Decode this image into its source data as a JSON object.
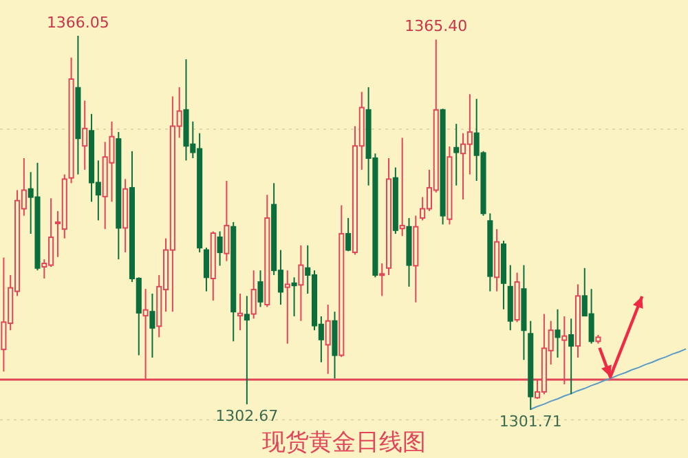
{
  "chart_data": {
    "type": "candlestick",
    "title": "现货黄金日线图",
    "categories": [
      null,
      null,
      null,
      null,
      null,
      null,
      null,
      null,
      null,
      null,
      null,
      null,
      null,
      null,
      null,
      null,
      null,
      null,
      null,
      null,
      null,
      null,
      null,
      null,
      null,
      null,
      null,
      null,
      null,
      null,
      null,
      null,
      null,
      null,
      null,
      null,
      null,
      null,
      null,
      null,
      null,
      null,
      null,
      null,
      null,
      null,
      null,
      null,
      null,
      null,
      null,
      null,
      null,
      null,
      null,
      null,
      null,
      null,
      null,
      null,
      null,
      null,
      null,
      null,
      null,
      null,
      null,
      null,
      null,
      null,
      null,
      null,
      null,
      null,
      null,
      null,
      null,
      null,
      null,
      null,
      null,
      null,
      null,
      null,
      null,
      null,
      null,
      null,
      null,
      null,
      null,
      null,
      null,
      null,
      null,
      null,
      null,
      null,
      null,
      null,
      null,
      null
    ],
    "ohlc": [
      [
        1312.1,
        1327.9,
        1308.3,
        1316.8
      ],
      [
        1316.6,
        1324.9,
        1315.4,
        1322.7
      ],
      [
        1322.1,
        1339.5,
        1321.3,
        1337.7
      ],
      [
        1336.3,
        1345.0,
        1335.1,
        1339.5
      ],
      [
        1339.7,
        1342.6,
        1332.0,
        1338.3
      ],
      [
        1338.3,
        1344.2,
        1325.7,
        1326.1
      ],
      [
        1326.3,
        1327.6,
        1324.3,
        1326.9
      ],
      [
        1326.6,
        1338.1,
        1326.3,
        1331.4
      ],
      [
        1333.8,
        1335.9,
        1328.0,
        1334.0
      ],
      [
        1332.8,
        1342.2,
        1331.2,
        1341.4
      ],
      [
        1341.6,
        1362.3,
        1340.7,
        1358.6
      ],
      [
        1357.1,
        1366.05,
        1342.2,
        1348.4
      ],
      [
        1347.1,
        1354.9,
        1343.0,
        1350.1
      ],
      [
        1349.7,
        1352.6,
        1337.5,
        1340.8
      ],
      [
        1340.8,
        1344.6,
        1334.3,
        1338.7
      ],
      [
        1338.4,
        1347.8,
        1332.8,
        1345.2
      ],
      [
        1344.2,
        1351.3,
        1337.5,
        1348.7
      ],
      [
        1348.3,
        1349.5,
        1327.6,
        1333.0
      ],
      [
        1333.0,
        1341.4,
        1328.8,
        1339.7
      ],
      [
        1339.9,
        1346.2,
        1323.7,
        1324.3
      ],
      [
        1324.3,
        1324.5,
        1311.1,
        1318.4
      ],
      [
        1317.9,
        1322.5,
        1306.9,
        1318.9
      ],
      [
        1318.6,
        1321.7,
        1310.7,
        1315.8
      ],
      [
        1316.1,
        1324.9,
        1314.2,
        1322.9
      ],
      [
        1322.4,
        1331.2,
        1318.6,
        1329.2
      ],
      [
        1329.2,
        1355.6,
        1318.6,
        1350.5
      ],
      [
        1350.5,
        1357.2,
        1348.5,
        1353.1
      ],
      [
        1353.3,
        1362.0,
        1344.6,
        1347.1
      ],
      [
        1347.4,
        1351.3,
        1345.0,
        1346.0
      ],
      [
        1346.6,
        1349.3,
        1328.8,
        1329.6
      ],
      [
        1329.2,
        1329.6,
        1322.1,
        1324.5
      ],
      [
        1324.3,
        1332.4,
        1320.5,
        1332.1
      ],
      [
        1331.4,
        1332.4,
        1326.5,
        1328.8
      ],
      [
        1328.6,
        1341.1,
        1327.3,
        1333.4
      ],
      [
        1333.2,
        1334.0,
        1313.5,
        1318.6
      ],
      [
        1317.9,
        1321.7,
        1315.4,
        1318.3
      ],
      [
        1318.1,
        1321.3,
        1302.67,
        1317.2
      ],
      [
        1318.2,
        1325.7,
        1317.4,
        1322.4
      ],
      [
        1323.7,
        1325.7,
        1319.4,
        1320.3
      ],
      [
        1319.8,
        1338.7,
        1319.4,
        1334.7
      ],
      [
        1337.0,
        1340.7,
        1324.9,
        1325.7
      ],
      [
        1325.7,
        1329.2,
        1319.8,
        1322.0
      ],
      [
        1322.8,
        1325.7,
        1313.1,
        1323.3
      ],
      [
        1323.5,
        1324.5,
        1317.8,
        1323.1
      ],
      [
        1323.2,
        1330.0,
        1317.0,
        1326.6
      ],
      [
        1326.1,
        1330.0,
        1321.7,
        1324.9
      ],
      [
        1324.9,
        1325.7,
        1315.4,
        1316.2
      ],
      [
        1316.4,
        1317.8,
        1309.9,
        1313.8
      ],
      [
        1312.9,
        1319.8,
        1307.9,
        1317.0
      ],
      [
        1317.0,
        1318.6,
        1307.1,
        1311.1
      ],
      [
        1311.1,
        1336.9,
        1310.8,
        1332.0
      ],
      [
        1332.0,
        1334.7,
        1329.0,
        1329.2
      ],
      [
        1328.8,
        1350.5,
        1328.4,
        1347.1
      ],
      [
        1347.1,
        1356.4,
        1343.0,
        1353.7
      ],
      [
        1353.3,
        1357.2,
        1340.3,
        1345.0
      ],
      [
        1345.0,
        1345.8,
        1324.5,
        1324.9
      ],
      [
        1324.9,
        1326.9,
        1321.3,
        1325.1
      ],
      [
        1326.1,
        1345.0,
        1324.9,
        1341.4
      ],
      [
        1341.6,
        1343.4,
        1332.0,
        1332.6
      ],
      [
        1332.9,
        1348.5,
        1331.6,
        1333.4
      ],
      [
        1333.2,
        1334.7,
        1322.9,
        1326.6
      ],
      [
        1326.5,
        1335.1,
        1320.2,
        1333.2
      ],
      [
        1334.7,
        1338.3,
        1334.3,
        1336.3
      ],
      [
        1336.3,
        1343.0,
        1335.9,
        1339.9
      ],
      [
        1339.5,
        1365.4,
        1339.1,
        1353.3
      ],
      [
        1353.3,
        1353.5,
        1333.6,
        1335.1
      ],
      [
        1334.5,
        1347.0,
        1333.6,
        1345.2
      ],
      [
        1346.8,
        1350.9,
        1340.3,
        1346.0
      ],
      [
        1345.8,
        1349.3,
        1337.9,
        1347.4
      ],
      [
        1347.4,
        1356.0,
        1342.2,
        1349.5
      ],
      [
        1349.3,
        1355.2,
        1341.1,
        1345.5
      ],
      [
        1345.9,
        1346.2,
        1335.1,
        1335.5
      ],
      [
        1334.2,
        1335.5,
        1322.1,
        1324.7
      ],
      [
        1324.5,
        1332.8,
        1322.1,
        1330.6
      ],
      [
        1330.2,
        1330.8,
        1319.0,
        1323.5
      ],
      [
        1322.9,
        1326.6,
        1315.4,
        1317.0
      ],
      [
        1317.2,
        1325.3,
        1316.8,
        1323.7
      ],
      [
        1322.5,
        1326.6,
        1310.3,
        1315.4
      ],
      [
        1314.8,
        1317.0,
        1301.71,
        1304.0
      ],
      [
        1303.8,
        1306.8,
        1303.6,
        1304.8
      ],
      [
        1304.8,
        1318.2,
        1304.4,
        1312.3
      ],
      [
        1311.9,
        1317.0,
        1309.5,
        1315.4
      ],
      [
        1315.4,
        1319.0,
        1310.7,
        1314.2
      ],
      [
        1313.7,
        1317.8,
        1306.1,
        1314.4
      ],
      [
        1314.6,
        1317.4,
        1304.4,
        1312.7
      ],
      [
        1312.7,
        1323.3,
        1310.7,
        1321.3
      ],
      [
        1321.3,
        1326.1,
        1317.8,
        1317.9
      ],
      [
        1318.2,
        1322.5,
        1313.1,
        1313.5
      ],
      [
        1313.5,
        1314.6,
        1313.1,
        1314.2
      ],
      null,
      null,
      null,
      null,
      null,
      null,
      null,
      null,
      null,
      null,
      null,
      null,
      null
    ],
    "colors": [
      "#e0455a",
      "#e0455a",
      "#e0455a",
      "#e0455a",
      "#0b6e3c",
      "#0b6e3c",
      "#e0455a",
      "#e0455a",
      "#e0455a",
      "#e0455a",
      "#e0455a",
      "#0b6e3c",
      "#e0455a",
      "#0b6e3c",
      "#0b6e3c",
      "#e0455a",
      "#e0455a",
      "#0b6e3c",
      "#e0455a",
      "#0b6e3c",
      "#0b6e3c",
      "#e0455a",
      "#0b6e3c",
      "#e0455a",
      "#e0455a",
      "#e0455a",
      "#e0455a",
      "#0b6e3c",
      "#0b6e3c",
      "#0b6e3c",
      "#0b6e3c",
      "#e0455a",
      "#0b6e3c",
      "#e0455a",
      "#0b6e3c",
      "#e0455a",
      "#0b6e3c",
      "#e0455a",
      "#0b6e3c",
      "#e0455a",
      "#0b6e3c",
      "#0b6e3c",
      "#e0455a",
      "#0b6e3c",
      "#e0455a",
      "#0b6e3c",
      "#0b6e3c",
      "#0b6e3c",
      "#e0455a",
      "#0b6e3c",
      "#e0455a",
      "#0b6e3c",
      "#e0455a",
      "#e0455a",
      "#0b6e3c",
      "#0b6e3c",
      "#e0455a",
      "#e0455a",
      "#0b6e3c",
      "#e0455a",
      "#0b6e3c",
      "#e0455a",
      "#e0455a",
      "#e0455a",
      "#e0455a",
      "#0b6e3c",
      "#e0455a",
      "#0b6e3c",
      "#e0455a",
      "#e0455a",
      "#0b6e3c",
      "#0b6e3c",
      "#0b6e3c",
      "#e0455a",
      "#0b6e3c",
      "#0b6e3c",
      "#e0455a",
      "#0b6e3c",
      "#0b6e3c",
      "#e0455a",
      "#e0455a",
      "#e0455a",
      "#0b6e3c",
      "#e0455a",
      "#0b6e3c",
      "#e0455a",
      "#0b6e3c",
      "#0b6e3c",
      "#e0455a",
      null,
      null,
      null,
      null,
      null,
      null,
      null,
      null,
      null,
      null,
      null,
      null,
      null
    ],
    "series": [
      {
        "type": "line",
        "color": "#5b9bc8",
        "values": [
          null,
          null,
          null,
          null,
          null,
          null,
          null,
          null,
          null,
          null,
          null,
          null,
          null,
          null,
          null,
          null,
          null,
          null,
          null,
          null,
          null,
          null,
          null,
          null,
          null,
          null,
          null,
          null,
          null,
          null,
          null,
          null,
          null,
          null,
          null,
          null,
          null,
          null,
          null,
          null,
          null,
          null,
          null,
          null,
          null,
          null,
          null,
          null,
          null,
          null,
          null,
          null,
          null,
          null,
          null,
          null,
          null,
          null,
          null,
          null,
          null,
          null,
          null,
          null,
          null,
          null,
          null,
          null,
          null,
          null,
          null,
          null,
          null,
          null,
          null,
          null,
          null,
          null,
          1301.8,
          1302.3,
          1302.7,
          1303.2,
          1303.6,
          1304.1,
          1304.5,
          1305.0,
          1305.4,
          1305.9,
          1306.3,
          1306.8,
          1307.2,
          1307.7,
          1308.1,
          1308.6,
          1309.0,
          1309.5,
          1309.9,
          1310.4,
          1310.8,
          1311.3,
          1311.7,
          1312.2
        ]
      }
    ],
    "yticks": [
      {
        "value": 1350,
        "label": null
      },
      {
        "value": 1300,
        "label": null
      }
    ],
    "grid": "y",
    "ref_lines": [
      {
        "axis": "y",
        "value": 1306.9,
        "color": "#e0455a"
      }
    ],
    "annotations": [
      {
        "text": "1366.05",
        "y": 1366.05
      },
      {
        "text": "1365.40",
        "y": 1365.4
      },
      {
        "text": "1302.67",
        "y": 1302.67
      },
      {
        "text": "1301.71",
        "y": 1301.71
      }
    ]
  }
}
